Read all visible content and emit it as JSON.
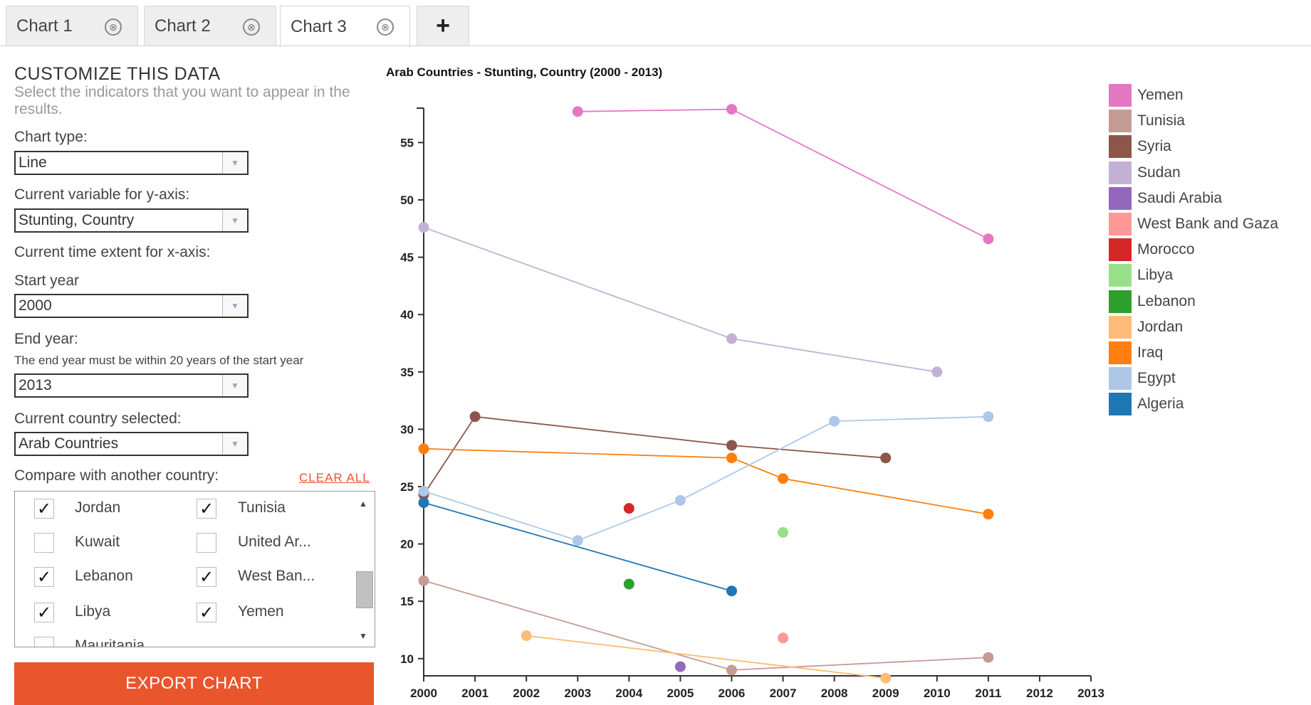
{
  "tabs": [
    {
      "label": "Chart 1",
      "active": false
    },
    {
      "label": "Chart 2",
      "active": false
    },
    {
      "label": "Chart 3",
      "active": true
    }
  ],
  "tab_close_glyph": "⊗",
  "tab_add_label": "+",
  "panel": {
    "title": "CUSTOMIZE THIS DATA",
    "subtitle": "Select the indicators that you want to appear in the results.",
    "chart_type_label": "Chart type:",
    "chart_type_value": "Line",
    "y_label": "Current variable for y-axis:",
    "y_value": "Stunting, Country",
    "x_extent_label": "Current time extent for x-axis:",
    "start_label": "Start year",
    "start_value": "2000",
    "end_label": "End year:",
    "end_note": "The end year must be within 20 years of the start year",
    "end_value": "2013",
    "country_label": "Current country selected:",
    "country_value": "Arab Countries",
    "compare_label": "Compare with another country:",
    "clear_all": "CLEAR ALL",
    "compare_items": [
      {
        "label": "Jordan",
        "checked": true
      },
      {
        "label": "Tunisia",
        "checked": true
      },
      {
        "label": "Kuwait",
        "checked": false
      },
      {
        "label": "United Ar...",
        "checked": false
      },
      {
        "label": "Lebanon",
        "checked": true
      },
      {
        "label": "West Ban...",
        "checked": true
      },
      {
        "label": "Libya",
        "checked": true
      },
      {
        "label": "Yemen",
        "checked": true
      },
      {
        "label": "Mauritania",
        "checked": false
      }
    ],
    "export_label": "EXPORT CHART"
  },
  "chart_data": {
    "type": "line",
    "title": "Arab Countries - Stunting, Country (2000 - 2013)",
    "xlim": [
      2000,
      2013
    ],
    "ylim": [
      8.5,
      58
    ],
    "x_ticks": [
      2000,
      2001,
      2002,
      2003,
      2004,
      2005,
      2006,
      2007,
      2008,
      2009,
      2010,
      2011,
      2012,
      2013
    ],
    "y_ticks": [
      10,
      15,
      20,
      25,
      30,
      35,
      40,
      45,
      50,
      55
    ],
    "grid": false,
    "legend_position": "right",
    "series": [
      {
        "name": "Yemen",
        "color": "#e377c2",
        "points": [
          [
            2003,
            57.7
          ],
          [
            2006,
            57.9
          ],
          [
            2011,
            46.6
          ]
        ]
      },
      {
        "name": "Tunisia",
        "color": "#c49c94",
        "points": [
          [
            2000,
            16.8
          ],
          [
            2006,
            9.0
          ],
          [
            2011,
            10.1
          ]
        ]
      },
      {
        "name": "Syria",
        "color": "#8c564b",
        "points": [
          [
            2000,
            24.3
          ],
          [
            2001,
            31.1
          ],
          [
            2006,
            28.6
          ],
          [
            2009,
            27.5
          ]
        ]
      },
      {
        "name": "Sudan",
        "color": "#c5b0d5",
        "points": [
          [
            2000,
            47.6
          ],
          [
            2006,
            37.9
          ],
          [
            2010,
            35.0
          ]
        ]
      },
      {
        "name": "Saudi Arabia",
        "color": "#9467bd",
        "points": [
          [
            2005,
            9.3
          ]
        ]
      },
      {
        "name": "West Bank and Gaza",
        "color": "#ff9896",
        "points": [
          [
            2007,
            11.8
          ]
        ]
      },
      {
        "name": "Morocco",
        "color": "#d62728",
        "points": [
          [
            2004,
            23.1
          ]
        ]
      },
      {
        "name": "Libya",
        "color": "#98df8a",
        "points": [
          [
            2007,
            21.0
          ]
        ]
      },
      {
        "name": "Lebanon",
        "color": "#2ca02c",
        "points": [
          [
            2004,
            16.5
          ]
        ]
      },
      {
        "name": "Jordan",
        "color": "#ffbb78",
        "points": [
          [
            2002,
            12.0
          ],
          [
            2009,
            8.3
          ]
        ]
      },
      {
        "name": "Iraq",
        "color": "#ff7f0e",
        "points": [
          [
            2000,
            28.3
          ],
          [
            2006,
            27.5
          ],
          [
            2007,
            25.7
          ],
          [
            2011,
            22.6
          ]
        ]
      },
      {
        "name": "Egypt",
        "color": "#aec7e8",
        "points": [
          [
            2000,
            24.6
          ],
          [
            2003,
            20.3
          ],
          [
            2005,
            23.8
          ],
          [
            2008,
            30.7
          ],
          [
            2011,
            31.1
          ]
        ]
      },
      {
        "name": "Algeria",
        "color": "#1f77b4",
        "points": [
          [
            2000,
            23.6
          ],
          [
            2006,
            15.9
          ]
        ]
      }
    ]
  }
}
